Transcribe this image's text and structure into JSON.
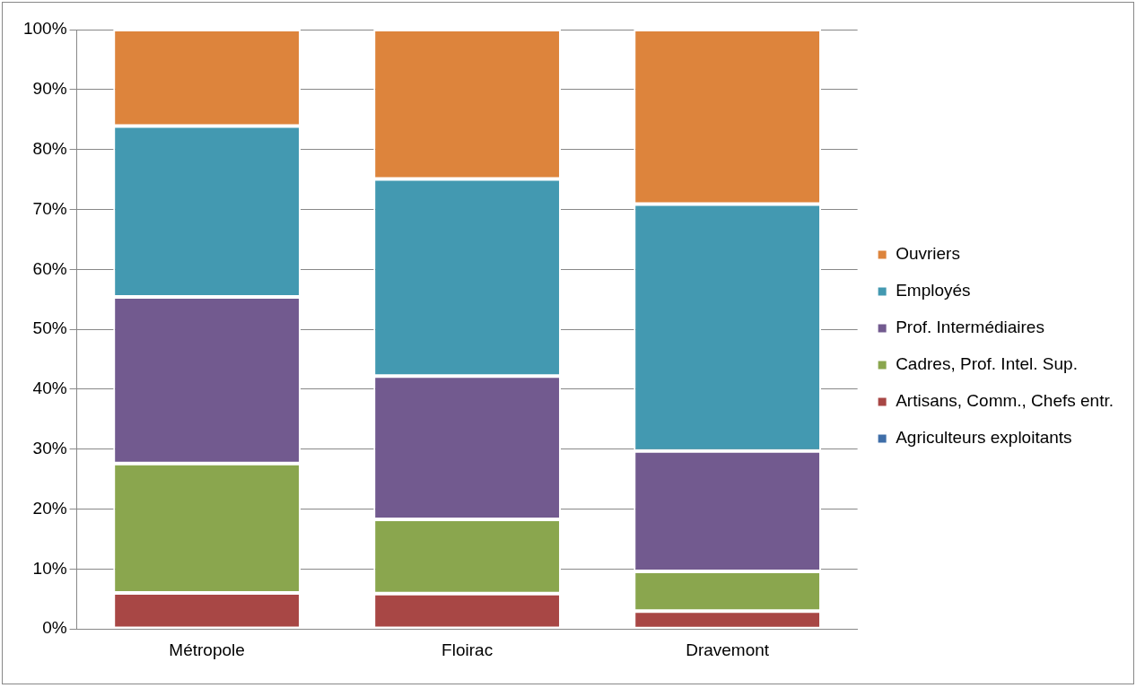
{
  "chart_data": {
    "type": "bar",
    "stacked": true,
    "categories": [
      "Métropole",
      "Floirac",
      "Dravemont"
    ],
    "series": [
      {
        "name": "Agriculteurs exploitants",
        "color": "#3f6ea8",
        "values": [
          0.1,
          0.1,
          0
        ]
      },
      {
        "name": "Artisans, Comm., Chefs entr.",
        "color": "#a84745",
        "values": [
          5.9,
          5.8,
          3.0
        ]
      },
      {
        "name": "Cadres, Prof. Intel. Sup.",
        "color": "#8aa64e",
        "values": [
          21.6,
          12.4,
          6.6
        ]
      },
      {
        "name": "Prof. Intermédiaires",
        "color": "#725a8f",
        "values": [
          27.8,
          23.9,
          20.1
        ]
      },
      {
        "name": "Employés",
        "color": "#4399b1",
        "values": [
          28.5,
          32.9,
          41.2
        ]
      },
      {
        "name": "Ouvriers",
        "color": "#dd843c",
        "values": [
          16.1,
          24.9,
          29.1
        ]
      }
    ],
    "ylim": [
      0,
      100
    ],
    "yticks": [
      {
        "value": 0,
        "label": "0%"
      },
      {
        "value": 10,
        "label": "10%"
      },
      {
        "value": 20,
        "label": "20%"
      },
      {
        "value": 30,
        "label": "30%"
      },
      {
        "value": 40,
        "label": "40%"
      },
      {
        "value": 50,
        "label": "50%"
      },
      {
        "value": 60,
        "label": "60%"
      },
      {
        "value": 70,
        "label": "70%"
      },
      {
        "value": 80,
        "label": "80%"
      },
      {
        "value": 90,
        "label": "90%"
      },
      {
        "value": 100,
        "label": "100%"
      }
    ],
    "grid": "y",
    "legend": "right"
  }
}
